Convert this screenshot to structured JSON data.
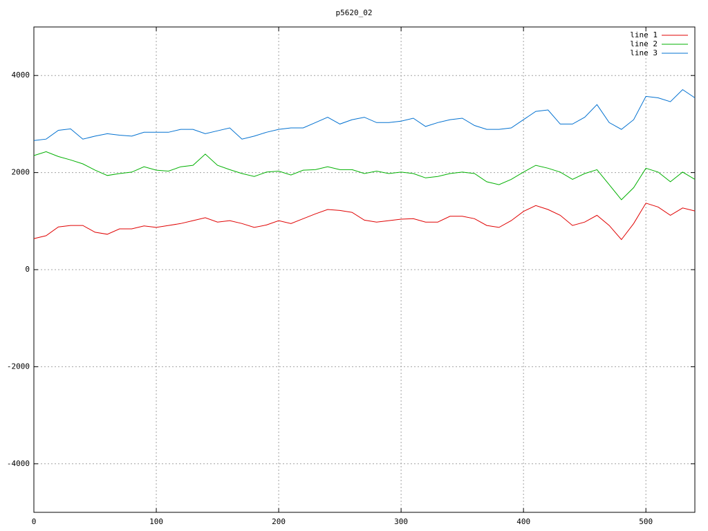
{
  "chart_data": {
    "type": "line",
    "title": "p5620_02",
    "x": [
      0,
      10,
      20,
      30,
      40,
      50,
      60,
      70,
      80,
      90,
      100,
      110,
      120,
      130,
      140,
      150,
      160,
      170,
      180,
      190,
      200,
      210,
      220,
      230,
      240,
      250,
      260,
      270,
      280,
      290,
      300,
      310,
      320,
      330,
      340,
      350,
      360,
      370,
      380,
      390,
      400,
      410,
      420,
      430,
      440,
      450,
      460,
      470,
      480,
      490,
      500,
      510,
      520,
      530,
      540
    ],
    "series": [
      {
        "name": "line 1",
        "color": "#e00000",
        "values": [
          640,
          700,
          880,
          910,
          910,
          770,
          730,
          840,
          840,
          900,
          870,
          910,
          950,
          1010,
          1070,
          980,
          1010,
          950,
          870,
          920,
          1010,
          950,
          1050,
          1150,
          1240,
          1220,
          1180,
          1020,
          980,
          1010,
          1040,
          1050,
          980,
          980,
          1100,
          1100,
          1050,
          910,
          870,
          1010,
          1200,
          1320,
          1240,
          1120,
          910,
          980,
          1120,
          910,
          620,
          950,
          1370,
          1290,
          1120,
          1270,
          1210
        ]
      },
      {
        "name": "line 2",
        "color": "#00b000",
        "values": [
          2350,
          2430,
          2330,
          2260,
          2180,
          2050,
          1940,
          1980,
          2010,
          2120,
          2050,
          2030,
          2120,
          2150,
          2380,
          2150,
          2060,
          1980,
          1920,
          2010,
          2030,
          1950,
          2050,
          2060,
          2120,
          2060,
          2060,
          1980,
          2030,
          1980,
          2010,
          1980,
          1890,
          1920,
          1980,
          2010,
          1980,
          1810,
          1750,
          1860,
          2010,
          2150,
          2090,
          2010,
          1860,
          1980,
          2060,
          1750,
          1440,
          1690,
          2090,
          2010,
          1810,
          2010,
          1860
        ]
      },
      {
        "name": "line 3",
        "color": "#0070d0",
        "values": [
          2660,
          2690,
          2870,
          2900,
          2690,
          2750,
          2800,
          2770,
          2750,
          2830,
          2830,
          2830,
          2890,
          2890,
          2800,
          2860,
          2920,
          2690,
          2750,
          2830,
          2890,
          2920,
          2920,
          3030,
          3140,
          3000,
          3090,
          3140,
          3030,
          3030,
          3060,
          3120,
          2950,
          3030,
          3090,
          3120,
          2970,
          2890,
          2890,
          2920,
          3090,
          3260,
          3290,
          3000,
          3000,
          3140,
          3400,
          3030,
          2890,
          3090,
          3570,
          3540,
          3460,
          3710,
          3540
        ]
      }
    ],
    "xlim": [
      0,
      540
    ],
    "xticks": [
      0,
      100,
      200,
      300,
      400,
      500
    ],
    "ylim": [
      -5000,
      5000
    ],
    "yticks": [
      -4000,
      -2000,
      0,
      2000,
      4000
    ],
    "grid": true,
    "legend": "top-right"
  }
}
